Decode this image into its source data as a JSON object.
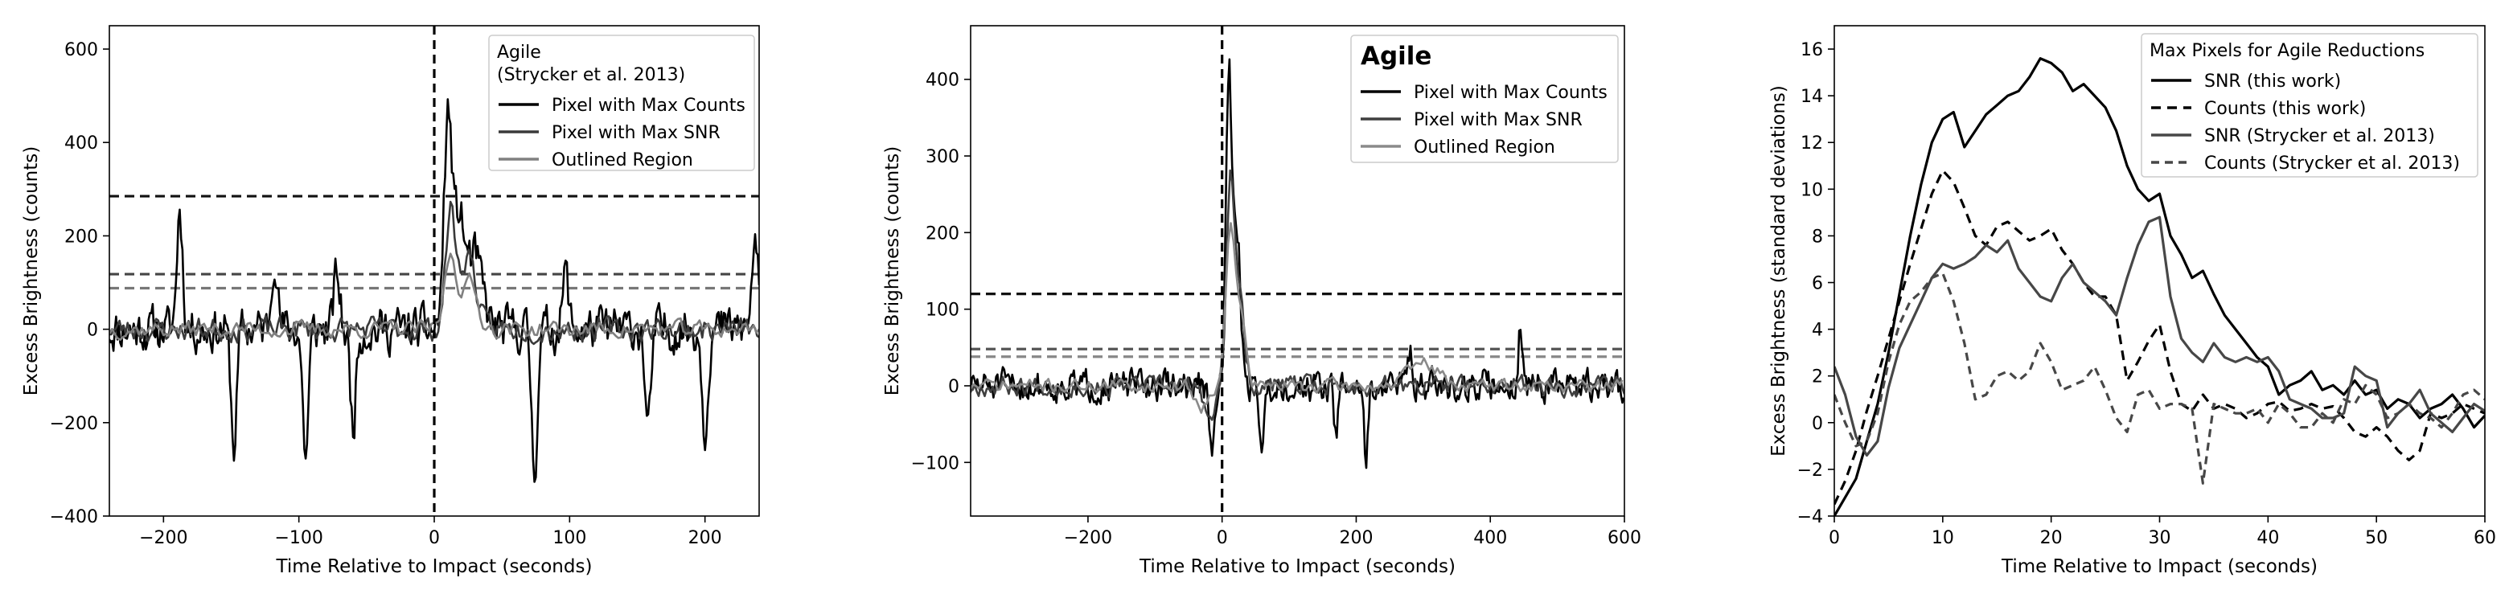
{
  "chart_data": [
    {
      "type": "line",
      "xlabel": "Time Relative to Impact (seconds)",
      "ylabel": "Excess Brightness (counts)",
      "xlim": [
        -240,
        240
      ],
      "ylim": [
        -400,
        650
      ],
      "xticks": [
        -200,
        -100,
        0,
        100,
        200
      ],
      "yticks": [
        -400,
        -200,
        0,
        200,
        400,
        600
      ],
      "xtick_labels": [
        "−200",
        "−100",
        "0",
        "100",
        "200"
      ],
      "ytick_labels": [
        "−400",
        "−200",
        "0",
        "200",
        "400",
        "600"
      ],
      "legend": {
        "title": "Agile\n(Strycker et al. 2013)",
        "title_bold": false,
        "placement": "upper right",
        "entries": [
          "Pixel with Max Counts",
          "Pixel with Max SNR",
          "Outlined Region"
        ]
      },
      "vlines": [
        0
      ],
      "hlines": [
        {
          "y": 285,
          "color": "#111111"
        },
        {
          "y": 118,
          "color": "#444444"
        },
        {
          "y": 88,
          "color": "#777777"
        }
      ],
      "series": [
        {
          "name": "Pixel with Max Counts",
          "color": "#000000",
          "seed": 11,
          "noise": 75,
          "dt": 1,
          "bumps": [
            [
              -188,
              260,
              3
            ],
            [
              -118,
              170,
              3
            ],
            [
              -72,
              120,
              3
            ],
            [
              10,
              430,
              4
            ],
            [
              18,
              230,
              6
            ],
            [
              30,
              150,
              8
            ],
            [
              97,
              120,
              3
            ],
            [
              237,
              200,
              3
            ]
          ],
          "dips": [
            [
              -148,
              -250,
              3
            ],
            [
              -95,
              -270,
              3
            ],
            [
              -60,
              -200,
              3
            ],
            [
              74,
              -300,
              3
            ],
            [
              158,
              -220,
              3
            ],
            [
              200,
              -210,
              3
            ]
          ]
        },
        {
          "name": "Pixel with Max SNR",
          "color": "#3a3a3a",
          "seed": 23,
          "noise": 40,
          "dt": 1.5,
          "bumps": [
            [
              12,
              250,
              5
            ],
            [
              25,
              160,
              8
            ]
          ],
          "dips": []
        },
        {
          "name": "Outlined Region",
          "color": "#808080",
          "seed": 37,
          "noise": 28,
          "dt": 2,
          "bumps": [
            [
              12,
              160,
              6
            ],
            [
              26,
              100,
              8
            ]
          ],
          "dips": []
        }
      ]
    },
    {
      "type": "line",
      "xlabel": "Time Relative to Impact (seconds)",
      "ylabel": "Excess Brightness (counts)",
      "xlim": [
        -375,
        600
      ],
      "ylim": [
        -170,
        470
      ],
      "xticks": [
        -200,
        0,
        200,
        400,
        600
      ],
      "yticks": [
        -100,
        0,
        100,
        200,
        300,
        400
      ],
      "xtick_labels": [
        "−200",
        "0",
        "200",
        "400",
        "600"
      ],
      "ytick_labels": [
        "−100",
        "0",
        "100",
        "200",
        "300",
        "400"
      ],
      "legend": {
        "title": "Agile",
        "title_bold": true,
        "placement": "upper right",
        "entries": [
          "Pixel with Max Counts",
          "Pixel with Max SNR",
          "Outlined Region"
        ]
      },
      "vlines": [
        0
      ],
      "hlines": [
        {
          "y": 120,
          "color": "#111111"
        },
        {
          "y": 48,
          "color": "#555555"
        },
        {
          "y": 38,
          "color": "#888888"
        }
      ],
      "series": [
        {
          "name": "Pixel with Max Counts",
          "color": "#000000",
          "seed": 51,
          "noise": 32,
          "dt": 2,
          "bumps": [
            [
              10,
              390,
              6
            ],
            [
              22,
              200,
              8
            ],
            [
              445,
              80,
              4
            ],
            [
              280,
              50,
              6
            ]
          ],
          "dips": [
            [
              -15,
              -90,
              6
            ],
            [
              60,
              -80,
              5
            ],
            [
              215,
              -100,
              4
            ],
            [
              170,
              -70,
              4
            ]
          ]
        },
        {
          "name": "Pixel with Max SNR",
          "color": "#3f3f3f",
          "seed": 67,
          "noise": 20,
          "dt": 3,
          "bumps": [
            [
              12,
              260,
              8
            ],
            [
              26,
              120,
              10
            ]
          ],
          "dips": [
            [
              -20,
              -50,
              10
            ]
          ]
        },
        {
          "name": "Outlined Region",
          "color": "#8a8a8a",
          "seed": 71,
          "noise": 14,
          "dt": 4,
          "bumps": [
            [
              12,
              200,
              10
            ],
            [
              28,
              90,
              10
            ],
            [
              300,
              30,
              30
            ]
          ],
          "dips": [
            [
              -30,
              -30,
              12
            ]
          ]
        }
      ]
    },
    {
      "type": "line",
      "xlabel": "Time Relative to Impact (seconds)",
      "ylabel": "Excess Brightness (standard deviations)",
      "xlim": [
        0,
        60
      ],
      "ylim": [
        -4,
        17
      ],
      "xticks": [
        0,
        10,
        20,
        30,
        40,
        50,
        60
      ],
      "yticks": [
        -4,
        -2,
        0,
        2,
        4,
        6,
        8,
        10,
        12,
        14,
        16
      ],
      "xtick_labels": [
        "0",
        "10",
        "20",
        "30",
        "40",
        "50",
        "60"
      ],
      "ytick_labels": [
        "−4",
        "−2",
        "0",
        "2",
        "4",
        "6",
        "8",
        "10",
        "12",
        "14",
        "16"
      ],
      "legend": {
        "title": "Max Pixels for Agile Reductions",
        "title_bold": false,
        "placement": "upper right",
        "entries": [
          "SNR (this work)",
          "Counts (this work)",
          "SNR (Strycker et al. 2013)",
          "Counts (Strycker et al. 2013)"
        ]
      },
      "series": [
        {
          "name": "SNR (this work)",
          "color": "#000000",
          "dash": "solid",
          "x": [
            0,
            1,
            2,
            3,
            4,
            5,
            6,
            7,
            8,
            9,
            10,
            11,
            12,
            13,
            14,
            15,
            16,
            17,
            18,
            19,
            20,
            21,
            22,
            23,
            24,
            25,
            26,
            27,
            28,
            29,
            30,
            31,
            32,
            33,
            34,
            35,
            36,
            37,
            38,
            39,
            40,
            41,
            42,
            43,
            44,
            45,
            46,
            47,
            48,
            49,
            50,
            51,
            52,
            53,
            54,
            55,
            56,
            57,
            58,
            59,
            60
          ],
          "y": [
            -4,
            -3.2,
            -2.4,
            -0.8,
            0.8,
            3,
            5.5,
            8,
            10.2,
            12,
            13,
            13.3,
            11.8,
            12.5,
            13.2,
            13.6,
            14,
            14.2,
            14.8,
            15.6,
            15.4,
            15,
            14.2,
            14.5,
            14,
            13.5,
            12.5,
            11,
            10,
            9.5,
            9.8,
            8,
            7.2,
            6.2,
            6.5,
            5.5,
            4.6,
            4,
            3.4,
            2.8,
            2.4,
            1.2,
            1.6,
            1.8,
            2.2,
            1.4,
            1.6,
            1.2,
            1.8,
            1.2,
            1.4,
            0.6,
            1,
            0.8,
            0.2,
            0.6,
            0.8,
            1.2,
            0.6,
            -0.2,
            0.3
          ]
        },
        {
          "name": "Counts (this work)",
          "color": "#000000",
          "dash": "12,8",
          "x": [
            0,
            1,
            2,
            3,
            4,
            5,
            6,
            7,
            8,
            9,
            10,
            11,
            12,
            13,
            14,
            15,
            16,
            17,
            18,
            19,
            20,
            21,
            22,
            23,
            24,
            25,
            26,
            27,
            28,
            29,
            30,
            31,
            32,
            33,
            34,
            35,
            36,
            37,
            38,
            39,
            40,
            41,
            42,
            43,
            44,
            45,
            46,
            47,
            48,
            49,
            50,
            51,
            52,
            53,
            54,
            55,
            56,
            57,
            58,
            59,
            60
          ],
          "y": [
            -3.5,
            -2.5,
            -1.2,
            0.5,
            2,
            3.6,
            5.2,
            6.8,
            8.3,
            9.8,
            10.8,
            10.3,
            9.2,
            8,
            7.6,
            8.4,
            8.6,
            8.2,
            7.8,
            8,
            8.3,
            7.4,
            6.8,
            6,
            5.4,
            5.4,
            4.6,
            1.8,
            2.6,
            3.5,
            4.2,
            2.2,
            0.8,
            0.5,
            1.2,
            0.6,
            0.8,
            0.6,
            0.2,
            0.4,
            0.8,
            0.9,
            0.5,
            0.6,
            0.8,
            0.6,
            0.7,
            0.2,
            -0.4,
            -0.6,
            -0.2,
            -0.6,
            -1.2,
            -1.6,
            -1.2,
            0.4,
            0.2,
            0.4,
            0.8,
            0.6,
            0.4
          ]
        },
        {
          "name": "SNR (Strycker et al. 2013)",
          "color": "#474747",
          "dash": "solid",
          "x": [
            0,
            1,
            2,
            3,
            4,
            5,
            6,
            7,
            8,
            9,
            10,
            11,
            12,
            13,
            14,
            15,
            16,
            17,
            18,
            19,
            20,
            21,
            22,
            23,
            24,
            25,
            26,
            27,
            28,
            29,
            30,
            31,
            32,
            33,
            34,
            35,
            36,
            37,
            38,
            39,
            40,
            41,
            42,
            43,
            44,
            45,
            46,
            47,
            48,
            49,
            50,
            51,
            52,
            53,
            54,
            55,
            56,
            57,
            58,
            59,
            60
          ],
          "y": [
            2.4,
            1.2,
            -0.6,
            -1.4,
            -0.8,
            1.5,
            3.2,
            4.2,
            5.2,
            6.2,
            6.8,
            6.6,
            6.8,
            7.1,
            7.6,
            7.3,
            7.8,
            6.6,
            6,
            5.4,
            5.2,
            6.2,
            6.8,
            6,
            5.6,
            5.2,
            4.6,
            6.2,
            7.6,
            8.6,
            8.8,
            5.4,
            3.6,
            3,
            2.6,
            3.4,
            2.8,
            2.6,
            2.8,
            2.6,
            2.8,
            2.2,
            1,
            0.8,
            0.6,
            0.2,
            0.2,
            0.4,
            2.4,
            2,
            1.8,
            -0.2,
            0.4,
            0.8,
            1.4,
            0.4,
            0,
            -0.4,
            0.2,
            0.8,
            0.5
          ]
        },
        {
          "name": "Counts (Strycker et al. 2013)",
          "color": "#474747",
          "dash": "10,7",
          "x": [
            0,
            1,
            2,
            3,
            4,
            5,
            6,
            7,
            8,
            9,
            10,
            11,
            12,
            13,
            14,
            15,
            16,
            17,
            18,
            19,
            20,
            21,
            22,
            23,
            24,
            25,
            26,
            27,
            28,
            29,
            30,
            31,
            32,
            33,
            34,
            35,
            36,
            37,
            38,
            39,
            40,
            41,
            42,
            43,
            44,
            45,
            46,
            47,
            48,
            49,
            50,
            51,
            52,
            53,
            54,
            55,
            56,
            57,
            58,
            59,
            60
          ],
          "y": [
            1.2,
            0,
            -1,
            -0.8,
            0.4,
            2.6,
            4.2,
            5.2,
            5.6,
            6.2,
            6.4,
            5.2,
            3.4,
            1,
            1.2,
            2,
            2.2,
            1.8,
            2.2,
            3.4,
            2.6,
            1.4,
            1.6,
            1.8,
            2.4,
            1.4,
            0.2,
            -0.4,
            1.2,
            1.4,
            0.6,
            0.8,
            0.8,
            0.6,
            -2.6,
            0.8,
            0.6,
            0.4,
            0.4,
            0.6,
            0,
            0.8,
            0.4,
            -0.2,
            -0.2,
            0.4,
            0,
            1,
            0.8,
            1.6,
            1.2,
            0.2,
            0.4,
            0.8,
            0.4,
            0.2,
            -0.2,
            0.4,
            1.2,
            1.4,
            1
          ]
        }
      ]
    }
  ]
}
